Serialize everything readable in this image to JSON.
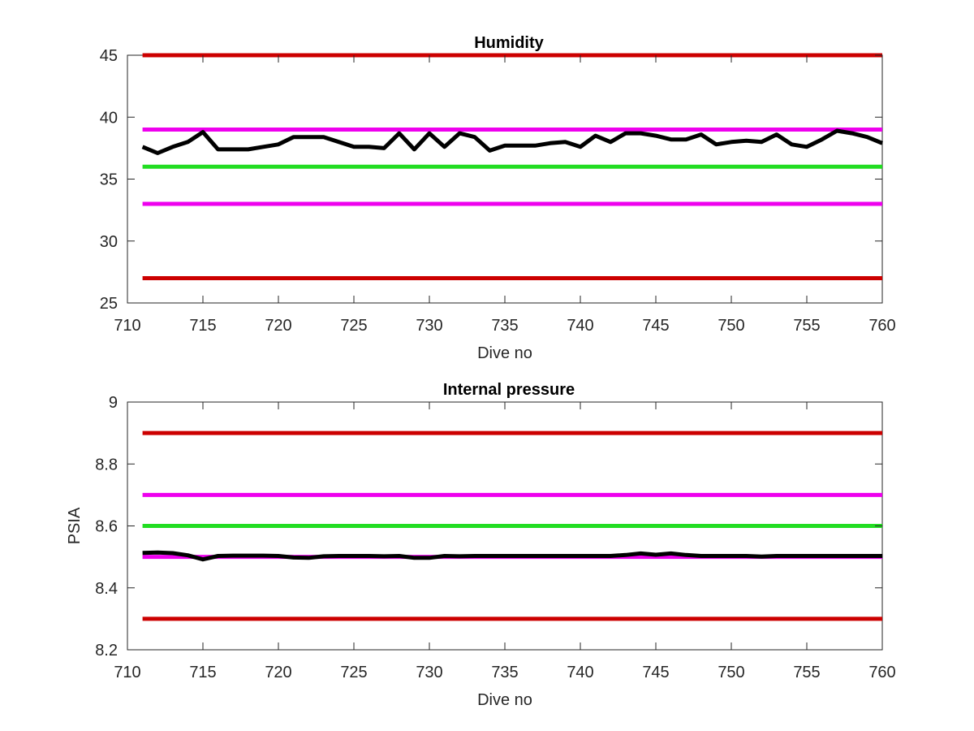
{
  "chart_data": [
    {
      "type": "line",
      "title": "Humidity",
      "xlabel": "Dive no",
      "ylabel": "",
      "xlim": [
        710,
        760
      ],
      "ylim": [
        25,
        45
      ],
      "xticks": [
        "710",
        "715",
        "720",
        "725",
        "730",
        "735",
        "740",
        "745",
        "750",
        "755",
        "760"
      ],
      "yticks": [
        "25",
        "30",
        "35",
        "40",
        "45"
      ],
      "grid": false,
      "reference_lines": [
        {
          "y": 45,
          "color": "#cc0000"
        },
        {
          "y": 39,
          "color": "#ee00ee"
        },
        {
          "y": 36,
          "color": "#22dd22"
        },
        {
          "y": 33,
          "color": "#ee00ee"
        },
        {
          "y": 27,
          "color": "#cc0000"
        }
      ],
      "series": [
        {
          "color": "#000000",
          "x": [
            711,
            712,
            713,
            714,
            715,
            716,
            717,
            718,
            719,
            720,
            721,
            722,
            723,
            724,
            725,
            726,
            727,
            728,
            729,
            730,
            731,
            732,
            733,
            734,
            735,
            736,
            737,
            738,
            739,
            740,
            741,
            742,
            743,
            744,
            745,
            746,
            747,
            748,
            749,
            750,
            751,
            752,
            753,
            754,
            755,
            756,
            757,
            758,
            759,
            760
          ],
          "y": [
            37.6,
            37.1,
            37.6,
            38.0,
            38.8,
            37.4,
            37.4,
            37.4,
            37.6,
            37.8,
            38.4,
            38.4,
            38.4,
            38.0,
            37.6,
            37.6,
            37.5,
            38.7,
            37.4,
            38.7,
            37.6,
            38.7,
            38.4,
            37.3,
            37.7,
            37.7,
            37.7,
            37.9,
            38.0,
            37.6,
            38.5,
            38.0,
            38.7,
            38.7,
            38.5,
            38.2,
            38.2,
            38.6,
            37.8,
            38.0,
            38.1,
            38.0,
            38.6,
            37.8,
            37.6,
            38.2,
            38.9,
            38.7,
            38.4,
            37.9
          ]
        }
      ]
    },
    {
      "type": "line",
      "title": "Internal pressure",
      "xlabel": "Dive no",
      "ylabel": "PSIA",
      "xlim": [
        710,
        760
      ],
      "ylim": [
        8.2,
        9.0
      ],
      "xticks": [
        "710",
        "715",
        "720",
        "725",
        "730",
        "735",
        "740",
        "745",
        "750",
        "755",
        "760"
      ],
      "yticks": [
        "8.2",
        "8.4",
        "8.6",
        "8.8",
        "9"
      ],
      "grid": false,
      "reference_lines": [
        {
          "y": 8.9,
          "color": "#cc0000"
        },
        {
          "y": 8.7,
          "color": "#ee00ee"
        },
        {
          "y": 8.6,
          "color": "#22dd22"
        },
        {
          "y": 8.5,
          "color": "#ee00ee"
        },
        {
          "y": 8.3,
          "color": "#cc0000"
        }
      ],
      "series": [
        {
          "color": "#000000",
          "x": [
            711,
            712,
            713,
            714,
            715,
            716,
            717,
            718,
            719,
            720,
            721,
            722,
            723,
            724,
            725,
            726,
            727,
            728,
            729,
            730,
            731,
            732,
            733,
            734,
            735,
            736,
            737,
            738,
            739,
            740,
            741,
            742,
            743,
            744,
            745,
            746,
            747,
            748,
            749,
            750,
            751,
            752,
            753,
            754,
            755,
            756,
            757,
            758,
            759,
            760
          ],
          "y": [
            8.513,
            8.514,
            8.512,
            8.505,
            8.492,
            8.503,
            8.504,
            8.504,
            8.504,
            8.503,
            8.498,
            8.497,
            8.502,
            8.503,
            8.503,
            8.503,
            8.502,
            8.503,
            8.497,
            8.497,
            8.503,
            8.502,
            8.503,
            8.503,
            8.503,
            8.503,
            8.503,
            8.503,
            8.503,
            8.503,
            8.503,
            8.503,
            8.506,
            8.511,
            8.507,
            8.511,
            8.506,
            8.503,
            8.503,
            8.503,
            8.503,
            8.501,
            8.503,
            8.503,
            8.503,
            8.503,
            8.503,
            8.503,
            8.503,
            8.503
          ]
        }
      ]
    }
  ]
}
